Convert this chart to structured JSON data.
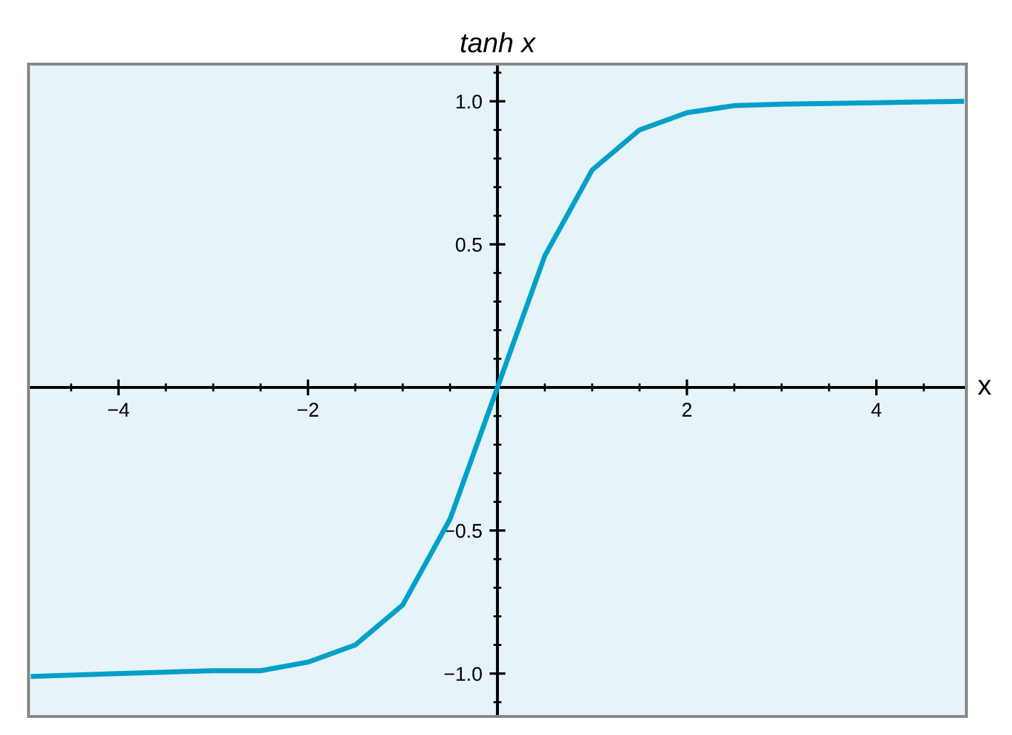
{
  "chart_data": {
    "type": "line",
    "title": "tanh x",
    "xlabel": "x",
    "x": [
      -4.9,
      -4,
      -3,
      -2.5,
      -2,
      -1.5,
      -1,
      -0.5,
      0,
      0.5,
      1,
      1.5,
      2,
      2.5,
      3,
      4,
      4.9
    ],
    "series": [
      {
        "color": "#00a0c8",
        "values": [
          -1.01,
          -1.0,
          -0.99,
          -0.99,
          -0.96,
          -0.9,
          -0.76,
          -0.46,
          0,
          0.46,
          0.76,
          0.9,
          0.96,
          0.985,
          0.99,
          0.995,
          1.0
        ]
      }
    ],
    "xlim": [
      -4.95,
      4.95
    ],
    "ylim": [
      -1.15,
      1.13
    ],
    "xticks": [
      {
        "value": -4,
        "label": "−4"
      },
      {
        "value": -2,
        "label": "−2"
      },
      2,
      4
    ],
    "yticks": [
      {
        "value": -1,
        "label": "−1.0"
      },
      {
        "value": -0.5,
        "label": "−0.5"
      },
      0.5,
      {
        "value": 1,
        "label": "1.0"
      }
    ],
    "grid": false,
    "legend": false,
    "marker": "none",
    "line_style": "solid"
  }
}
